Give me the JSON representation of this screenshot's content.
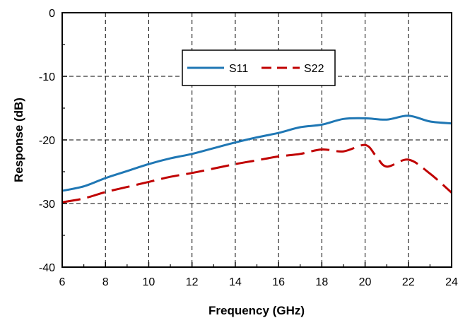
{
  "chart_data": {
    "type": "line",
    "xlabel": "Frequency (GHz)",
    "ylabel": "Response (dB)",
    "xlim": [
      6,
      24
    ],
    "ylim": [
      -40,
      0
    ],
    "x_ticks": [
      "6",
      "8",
      "10",
      "12",
      "14",
      "16",
      "18",
      "20",
      "22",
      "24"
    ],
    "y_ticks": [
      "0",
      "-10",
      "-20",
      "-30",
      "-40"
    ],
    "grid": true,
    "grid_style": "dashed",
    "legend_position": "top-center",
    "series": [
      {
        "name": "S11",
        "color": "#1f77b4",
        "line_style": "solid",
        "x": [
          6,
          7,
          8,
          9,
          10,
          11,
          12,
          13,
          14,
          15,
          16,
          17,
          18,
          19,
          20,
          21,
          22,
          23,
          24
        ],
        "y": [
          -28,
          -27.3,
          -26,
          -24.9,
          -23.8,
          -22.9,
          -22.2,
          -21.3,
          -20.4,
          -19.6,
          -18.9,
          -18,
          -17.6,
          -16.7,
          -16.6,
          -16.8,
          -16.2,
          -17.1,
          -17.4
        ]
      },
      {
        "name": "S22",
        "color": "#c00000",
        "line_style": "dashed",
        "x": [
          6,
          7,
          8,
          9,
          10,
          11,
          12,
          13,
          14,
          15,
          16,
          17,
          18,
          19,
          20,
          20.5,
          21,
          22,
          23,
          24
        ],
        "y": [
          -29.8,
          -29.2,
          -28.2,
          -27.4,
          -26.6,
          -25.8,
          -25.2,
          -24.5,
          -23.8,
          -23.2,
          -22.6,
          -22.2,
          -21.5,
          -21.8,
          -20.8,
          -22.5,
          -24.2,
          -23.1,
          -25.3,
          -28.3
        ]
      }
    ]
  }
}
